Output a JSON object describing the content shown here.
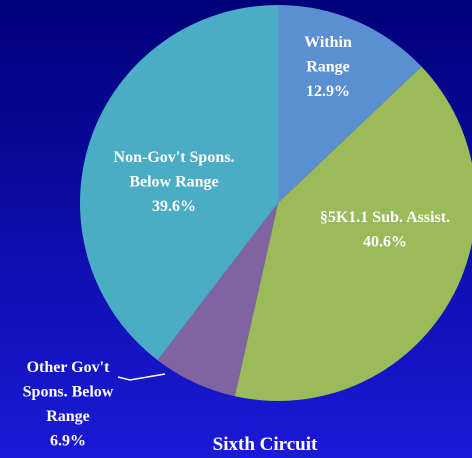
{
  "chart_data": {
    "type": "pie",
    "title": "Sixth Circuit",
    "categories": [
      "Within\nRange",
      "§5K1.1 Sub. Assist.",
      "Other Gov't\nSpons. Below\nRange",
      "Non-Gov't Spons.\nBelow Range"
    ],
    "values": [
      12.9,
      40.6,
      6.9,
      39.6
    ],
    "value_labels": [
      "12.9%",
      "40.6%",
      "6.9%",
      "39.6%"
    ],
    "colors": [
      "#5a8fd2",
      "#9bbb59",
      "#8064a2",
      "#4bacc6"
    ]
  }
}
